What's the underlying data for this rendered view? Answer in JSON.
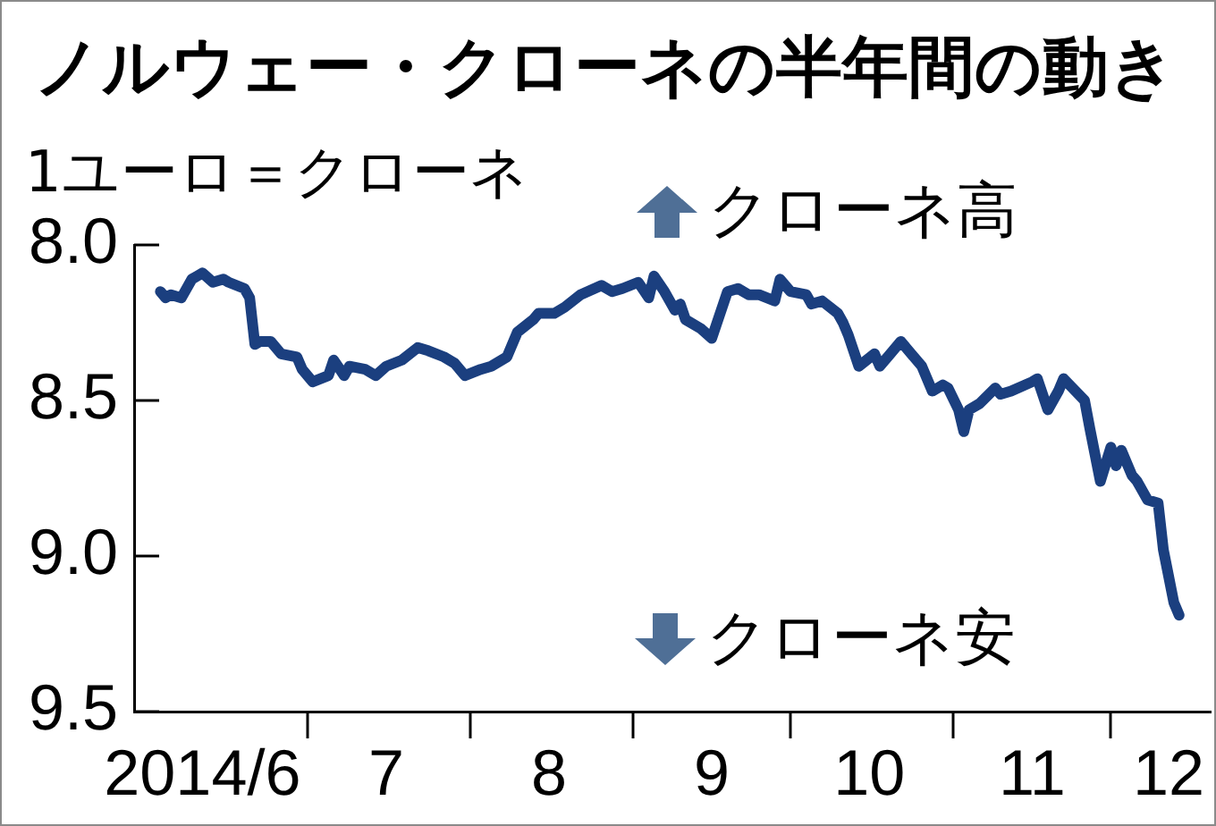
{
  "chart_data": {
    "type": "line",
    "title": "ノルウェー・クローネの半年間の動き",
    "ylabel": "1ユーロ＝クローネ",
    "annotations": [
      "クローネ高",
      "クローネ安"
    ],
    "x": [
      "2014-06-03",
      "2014-06-04",
      "2014-06-05",
      "2014-06-07",
      "2014-06-09",
      "2014-06-10",
      "2014-06-11",
      "2014-06-13",
      "2014-06-15",
      "2014-06-16",
      "2014-06-19",
      "2014-06-20",
      "2014-06-21",
      "2014-06-22",
      "2014-06-24",
      "2014-06-26",
      "2014-06-29",
      "2014-06-30",
      "2014-07-02",
      "2014-07-05",
      "2014-07-06",
      "2014-07-08",
      "2014-07-09",
      "2014-07-12",
      "2014-07-14",
      "2014-07-16",
      "2014-07-19",
      "2014-07-22",
      "2014-07-24",
      "2014-07-27",
      "2014-07-29",
      "2014-07-31",
      "2014-08-03",
      "2014-08-05",
      "2014-08-08",
      "2014-08-10",
      "2014-08-13",
      "2014-08-14",
      "2014-08-17",
      "2014-08-19",
      "2014-08-22",
      "2014-08-26",
      "2014-08-28",
      "2014-08-30",
      "2014-09-02",
      "2014-09-04",
      "2014-09-05",
      "2014-09-07",
      "2014-09-09",
      "2014-09-10",
      "2014-09-11",
      "2014-09-14",
      "2014-09-16",
      "2014-09-19",
      "2014-09-21",
      "2014-09-23",
      "2014-09-25",
      "2014-09-28",
      "2014-09-29",
      "2014-10-01",
      "2014-10-04",
      "2014-10-05",
      "2014-10-07",
      "2014-10-10",
      "2014-10-11",
      "2014-10-12",
      "2014-10-14",
      "2014-10-17",
      "2014-10-18",
      "2014-10-20",
      "2014-10-22",
      "2014-10-24",
      "2014-10-26",
      "2014-10-28",
      "2014-10-30",
      "2014-10-31",
      "2014-11-02",
      "2014-11-03",
      "2014-11-04",
      "2014-11-06",
      "2014-11-09",
      "2014-11-10",
      "2014-11-12",
      "2014-11-16",
      "2014-11-17",
      "2014-11-19",
      "2014-11-21",
      "2014-11-22",
      "2014-11-26",
      "2014-11-27",
      "2014-11-29",
      "2014-12-01",
      "2014-12-02",
      "2014-12-03",
      "2014-12-05",
      "2014-12-06",
      "2014-12-08",
      "2014-12-10",
      "2014-12-11",
      "2014-12-13",
      "2014-12-14"
    ],
    "series": [
      {
        "color": "#1b3f7f",
        "values": [
          8.15,
          8.17,
          8.16,
          8.17,
          8.11,
          8.1,
          8.09,
          8.12,
          8.11,
          8.12,
          8.14,
          8.17,
          8.32,
          8.31,
          8.31,
          8.35,
          8.36,
          8.4,
          8.44,
          8.42,
          8.37,
          8.42,
          8.39,
          8.4,
          8.42,
          8.39,
          8.37,
          8.33,
          8.34,
          8.36,
          8.38,
          8.42,
          8.4,
          8.39,
          8.36,
          8.28,
          8.24,
          8.22,
          8.22,
          8.2,
          8.16,
          8.13,
          8.15,
          8.14,
          8.12,
          8.17,
          8.1,
          8.15,
          8.21,
          8.19,
          8.24,
          8.27,
          8.3,
          8.15,
          8.14,
          8.16,
          8.16,
          8.18,
          8.11,
          8.15,
          8.16,
          8.19,
          8.18,
          8.22,
          8.25,
          8.29,
          8.39,
          8.35,
          8.39,
          8.35,
          8.31,
          8.35,
          8.39,
          8.47,
          8.45,
          8.46,
          8.53,
          8.6,
          8.53,
          8.51,
          8.46,
          8.48,
          8.47,
          8.44,
          8.43,
          8.53,
          8.47,
          8.43,
          8.5,
          8.59,
          8.76,
          8.65,
          8.71,
          8.66,
          8.74,
          8.76,
          8.82,
          8.83,
          8.98,
          9.15,
          9.19
        ]
      }
    ],
    "xlim": [
      "2014-05-29",
      "2014-12-20"
    ],
    "xticks": [
      {
        "value": "2014-06-11",
        "label": "2014/6"
      },
      {
        "value": "2014-07-01",
        "label": null
      },
      {
        "value": "2014-07-16",
        "label": "7"
      },
      {
        "value": "2014-08-01",
        "label": null
      },
      {
        "value": "2014-08-16",
        "label": "8"
      },
      {
        "value": "2014-09-01",
        "label": null
      },
      {
        "value": "2014-09-16",
        "label": "9"
      },
      {
        "value": "2014-10-01",
        "label": null
      },
      {
        "value": "2014-10-16",
        "label": "10"
      },
      {
        "value": "2014-11-01",
        "label": null
      },
      {
        "value": "2014-11-16",
        "label": "11"
      },
      {
        "value": "2014-12-01",
        "label": null
      },
      {
        "value": "2014-12-12",
        "label": "12"
      }
    ],
    "ylim": [
      9.5,
      8.0
    ],
    "yticks": [
      {
        "value": 8,
        "label": "8.0"
      },
      8.5,
      {
        "value": 9,
        "label": "9.0"
      },
      9.5
    ]
  }
}
